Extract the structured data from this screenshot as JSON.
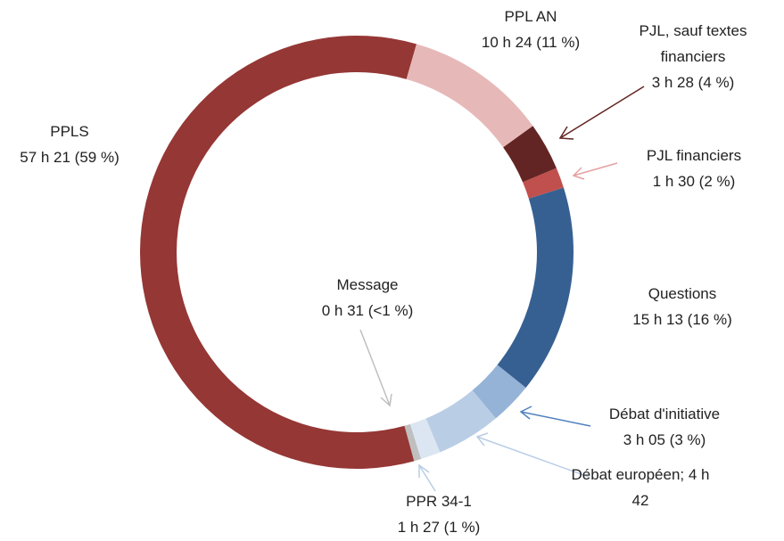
{
  "chart_data": {
    "type": "pie",
    "categories": [
      "PPL AN",
      "PJL, sauf textes financiers",
      "PJL financiers",
      "Questions",
      "Débat d'initiative",
      "Débat européen;",
      "PPR 34-1",
      "Message",
      "PPLS"
    ],
    "values": [
      624,
      208,
      90,
      913,
      185,
      282,
      87,
      31,
      3441
    ],
    "value_labels": [
      "10 h 24 (11 %)",
      "3 h 28 (4 %)",
      "1 h 30 (2 %)",
      "15 h 13 (16 %)",
      "3 h 05 (3 %)",
      "4 h 42",
      "1 h 27 (1 %)",
      "0 h 31 (<1 %)",
      "57 h 21 (59 %)"
    ],
    "colors": [
      "#e6b9b8",
      "#632523",
      "#c0504d",
      "#376092",
      "#95b3d7",
      "#b9cde5",
      "#dce6f2",
      "#bfbfbf",
      "#953735"
    ],
    "donut": true
  }
}
